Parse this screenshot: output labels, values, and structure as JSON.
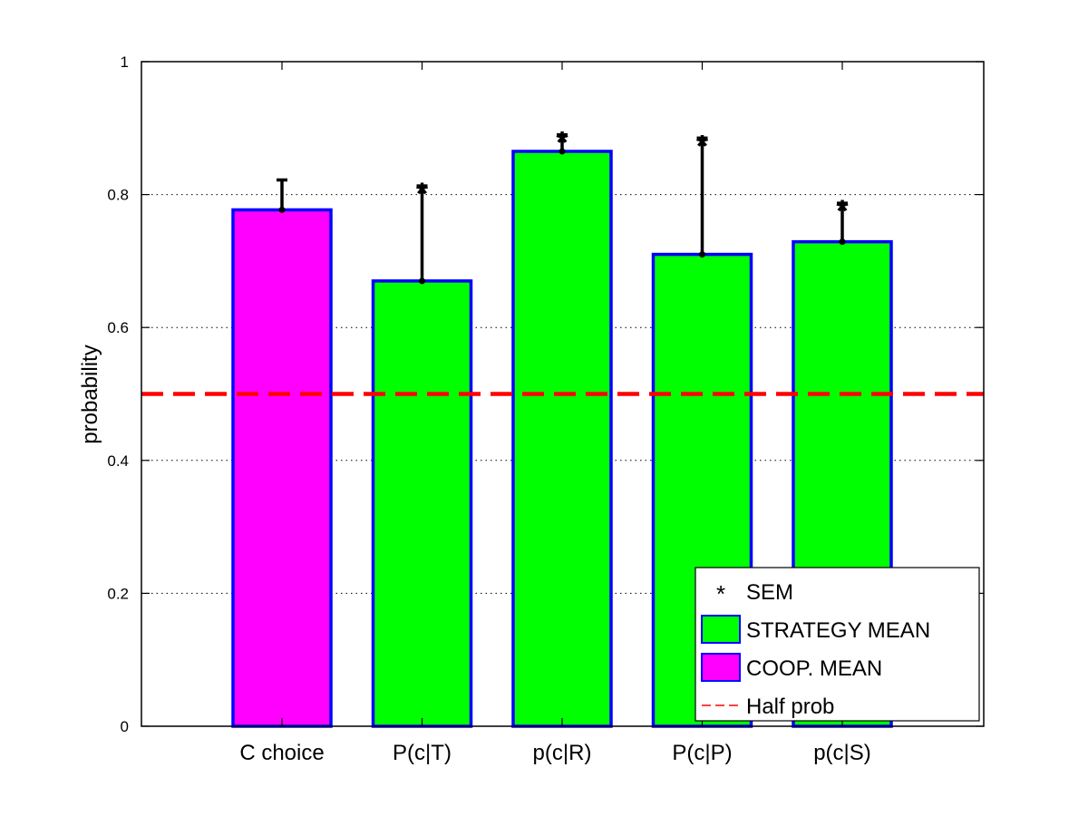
{
  "chart_data": {
    "type": "bar",
    "title": "",
    "xlabel": "",
    "ylabel": "probability",
    "categories": [
      "C choice",
      "P(c|T)",
      "p(c|R)",
      "P(c|P)",
      "p(c|S)"
    ],
    "values": [
      0.777,
      0.67,
      0.865,
      0.71,
      0.729
    ],
    "errors": [
      0.045,
      0.143,
      0.025,
      0.175,
      0.058
    ],
    "significant": [
      false,
      true,
      true,
      true,
      true
    ],
    "significance_marker": "*",
    "bar_kind": [
      "coop",
      "strategy",
      "strategy",
      "strategy",
      "strategy"
    ],
    "ylim": [
      0,
      1
    ],
    "yticks": [
      0,
      0.2,
      0.4,
      0.6,
      0.8,
      1
    ],
    "ytick_labels": [
      "0",
      "0.2",
      "0.4",
      "0.6",
      "0.8",
      "1"
    ],
    "grid": "y-dotted",
    "reference_line": {
      "value": 0.5,
      "name": "Half prob",
      "style": "dashed",
      "color": "#ff0000"
    },
    "legend_position": "bottom-right",
    "legend": [
      {
        "kind": "marker",
        "label": "SEM"
      },
      {
        "kind": "strategy",
        "label": "STRATEGY MEAN"
      },
      {
        "kind": "coop",
        "label": "COOP. MEAN"
      },
      {
        "kind": "line",
        "label": "Half prob"
      }
    ],
    "colors": {
      "coop": "#ff00ff",
      "strategy": "#00ff00",
      "bar_edge": "#0000ff",
      "error": "#000000",
      "reference": "#ff0000"
    }
  }
}
